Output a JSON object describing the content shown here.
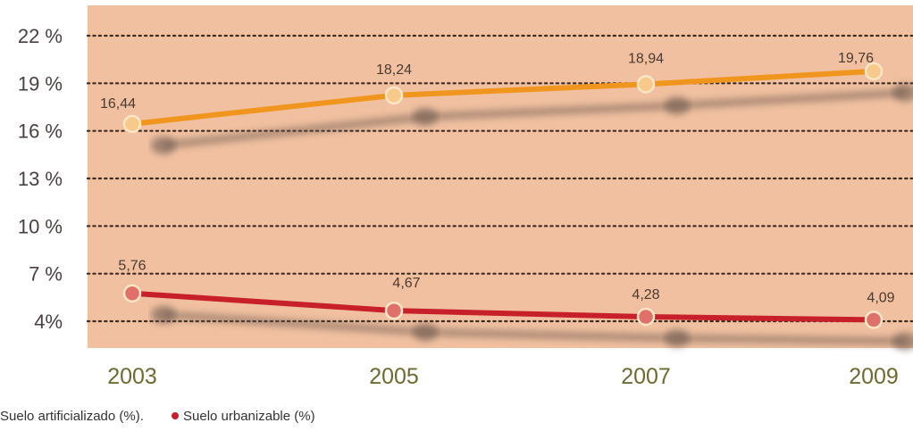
{
  "chart_data": {
    "type": "line",
    "x": [
      "2003",
      "2005",
      "2007",
      "2009"
    ],
    "y_ticks": [
      {
        "value": 22,
        "label": "22 %"
      },
      {
        "value": 19,
        "label": "19 %"
      },
      {
        "value": 16,
        "label": "16 %"
      },
      {
        "value": 13,
        "label": "13 %"
      },
      {
        "value": 10,
        "label": "10 %"
      },
      {
        "value": 7,
        "label": "7 %"
      },
      {
        "value": 4,
        "label": "4%"
      }
    ],
    "ylim": [
      1,
      23
    ],
    "grid": "horizontal-dotted",
    "legend_position": "bottom-left",
    "series": [
      {
        "name": "Suelo artificializado (%).",
        "values": [
          16.44,
          18.24,
          18.94,
          19.76
        ],
        "labels": [
          "16,44",
          "18,24",
          "18,94",
          "19,76"
        ],
        "color": "#f0961e"
      },
      {
        "name": "Suelo urbanizable (%)",
        "values": [
          5.76,
          4.67,
          4.28,
          4.09
        ],
        "labels": [
          "5,76",
          "4,67",
          "4,28",
          "4,09"
        ],
        "color": "#c8202a"
      }
    ],
    "colors": {
      "plot_background": "#f0c0a0",
      "grid": "#3a2a20",
      "shadow": "#6e5a50"
    }
  }
}
